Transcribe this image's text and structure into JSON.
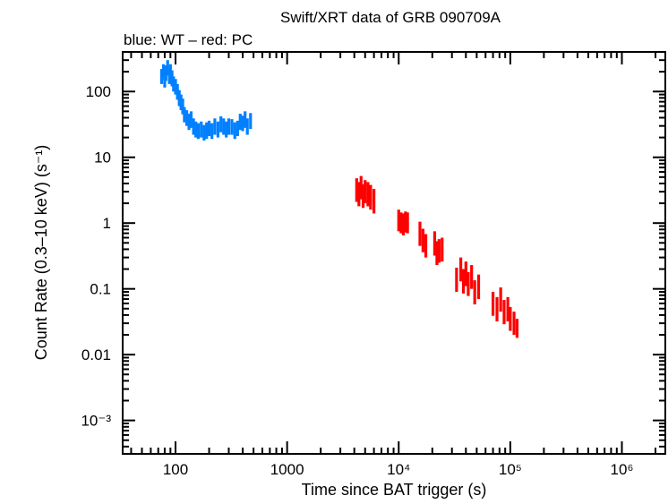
{
  "chart_data": {
    "type": "scatter",
    "title": "Swift/XRT data of GRB 090709A",
    "subtitle": "blue: WT – red: PC",
    "xlabel": "Time since BAT trigger (s)",
    "ylabel": "Count Rate (0.3–10 keV) (s⁻¹)",
    "xscale": "log",
    "yscale": "log",
    "xlim": [
      33.6,
      2450000
    ],
    "ylim": [
      0.00031,
      400
    ],
    "grid": false,
    "x_ticks": [
      {
        "value": 100,
        "label": "100"
      },
      {
        "value": 1000,
        "label": "1000"
      },
      {
        "value": 10000,
        "label": "10⁴"
      },
      {
        "value": 100000,
        "label": "10⁵"
      },
      {
        "value": 1000000,
        "label": "10⁶"
      }
    ],
    "y_ticks": [
      {
        "value": 100,
        "label": "100"
      },
      {
        "value": 10,
        "label": "10"
      },
      {
        "value": 1,
        "label": "1"
      },
      {
        "value": 0.1,
        "label": "0.1"
      },
      {
        "value": 0.01,
        "label": "0.01"
      },
      {
        "value": 0.001,
        "label": "10⁻³"
      }
    ],
    "series": [
      {
        "mode": "WT",
        "color": "#0080ff",
        "points": [
          [
            75,
            170,
            130,
            220
          ],
          [
            78,
            200,
            150,
            260
          ],
          [
            80,
            150,
            115,
            195
          ],
          [
            82,
            190,
            145,
            250
          ],
          [
            85,
            230,
            175,
            300
          ],
          [
            88,
            170,
            130,
            220
          ],
          [
            90,
            200,
            150,
            260
          ],
          [
            93,
            160,
            120,
            210
          ],
          [
            96,
            130,
            100,
            170
          ],
          [
            100,
            120,
            90,
            155
          ],
          [
            104,
            100,
            75,
            130
          ],
          [
            108,
            80,
            60,
            105
          ],
          [
            112,
            70,
            52,
            90
          ],
          [
            116,
            60,
            45,
            78
          ],
          [
            120,
            45,
            34,
            58
          ],
          [
            126,
            40,
            30,
            52
          ],
          [
            132,
            35,
            26,
            46
          ],
          [
            138,
            38,
            28,
            50
          ],
          [
            145,
            30,
            22,
            39
          ],
          [
            152,
            27,
            20,
            35
          ],
          [
            160,
            25,
            19,
            33
          ],
          [
            170,
            27,
            20,
            35
          ],
          [
            180,
            24,
            18,
            31
          ],
          [
            190,
            26,
            19,
            34
          ],
          [
            200,
            28,
            21,
            36
          ],
          [
            212,
            25,
            19,
            33
          ],
          [
            225,
            30,
            22,
            39
          ],
          [
            240,
            27,
            20,
            35
          ],
          [
            255,
            32,
            24,
            42
          ],
          [
            270,
            30,
            22,
            39
          ],
          [
            285,
            27,
            20,
            35
          ],
          [
            300,
            30,
            22,
            39
          ],
          [
            320,
            29,
            22,
            38
          ],
          [
            340,
            26,
            19,
            34
          ],
          [
            360,
            28,
            21,
            36
          ],
          [
            380,
            35,
            26,
            46
          ],
          [
            400,
            33,
            25,
            43
          ],
          [
            420,
            38,
            28,
            50
          ],
          [
            440,
            30,
            22,
            39
          ],
          [
            470,
            36,
            27,
            47
          ]
        ]
      },
      {
        "mode": "PC",
        "color": "#ff0000",
        "points": [
          [
            4200,
            3.2,
            2.1,
            4.8
          ],
          [
            4400,
            2.8,
            1.8,
            4.2
          ],
          [
            4600,
            3.5,
            2.3,
            5.2
          ],
          [
            4800,
            2.6,
            1.7,
            3.9
          ],
          [
            5000,
            3.0,
            2.0,
            4.5
          ],
          [
            5300,
            2.8,
            1.8,
            4.2
          ],
          [
            5600,
            2.5,
            1.6,
            3.8
          ],
          [
            6000,
            2.2,
            1.4,
            3.3
          ],
          [
            10000,
            1.1,
            0.75,
            1.6
          ],
          [
            10500,
            1.0,
            0.7,
            1.45
          ],
          [
            11000,
            0.95,
            0.65,
            1.4
          ],
          [
            11500,
            1.05,
            0.72,
            1.5
          ],
          [
            12000,
            1.0,
            0.7,
            1.45
          ],
          [
            15500,
            0.7,
            0.45,
            1.05
          ],
          [
            16500,
            0.55,
            0.36,
            0.82
          ],
          [
            17500,
            0.45,
            0.3,
            0.68
          ],
          [
            21000,
            0.5,
            0.32,
            0.75
          ],
          [
            22000,
            0.35,
            0.23,
            0.53
          ],
          [
            23000,
            0.38,
            0.25,
            0.57
          ],
          [
            24500,
            0.4,
            0.26,
            0.6
          ],
          [
            33000,
            0.14,
            0.09,
            0.21
          ],
          [
            36000,
            0.2,
            0.13,
            0.3
          ],
          [
            38000,
            0.13,
            0.085,
            0.2
          ],
          [
            40000,
            0.17,
            0.11,
            0.26
          ],
          [
            42000,
            0.12,
            0.078,
            0.18
          ],
          [
            45000,
            0.15,
            0.1,
            0.23
          ],
          [
            48000,
            0.09,
            0.058,
            0.135
          ],
          [
            52000,
            0.11,
            0.07,
            0.165
          ],
          [
            70000,
            0.06,
            0.039,
            0.09
          ],
          [
            76000,
            0.05,
            0.032,
            0.075
          ],
          [
            82000,
            0.07,
            0.045,
            0.105
          ],
          [
            88000,
            0.045,
            0.029,
            0.068
          ],
          [
            95000,
            0.05,
            0.032,
            0.075
          ],
          [
            100000,
            0.035,
            0.023,
            0.053
          ],
          [
            108000,
            0.03,
            0.02,
            0.045
          ],
          [
            115000,
            0.025,
            0.018,
            0.035
          ]
        ]
      }
    ]
  }
}
